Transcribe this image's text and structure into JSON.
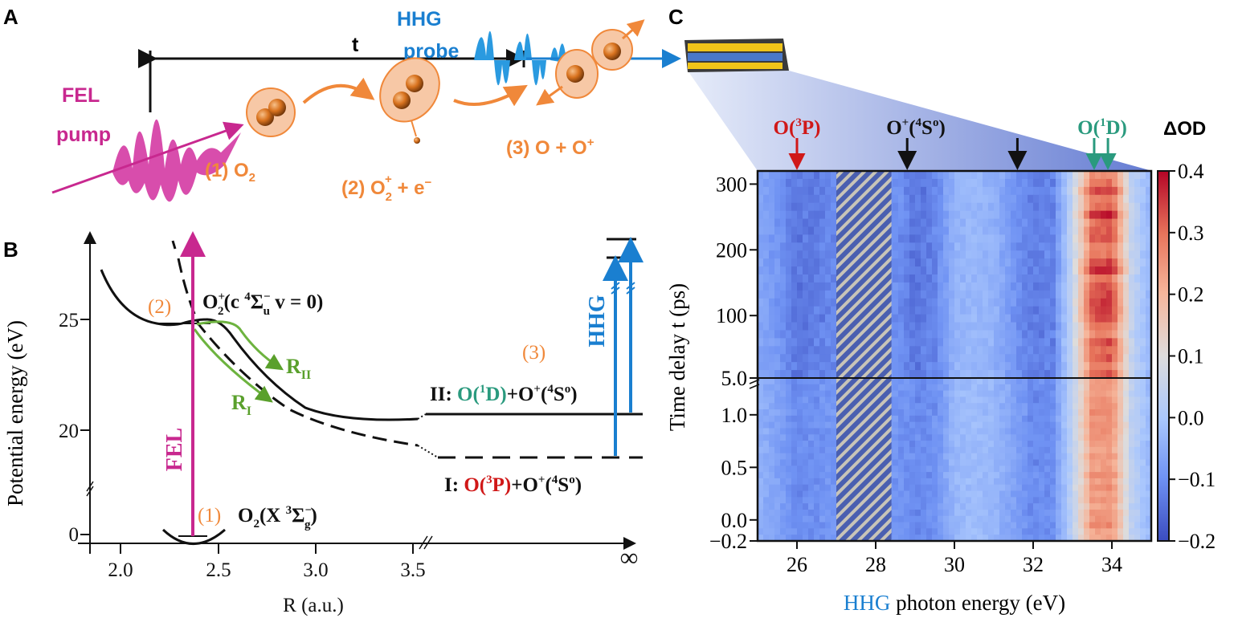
{
  "panels": {
    "a": {
      "letter": "A",
      "fel_label_1": "FEL",
      "fel_label_2": "pump",
      "hhg_label_1": "HHG",
      "hhg_label_2": "probe",
      "delay_label": "t",
      "step1": "(1) O",
      "step1_sub": "2",
      "step2": "(2) O",
      "step2_sub": "2",
      "step2_sup": "+",
      "step2_tail": " + e",
      "step2_tail_sup": "−",
      "step3": "(3) O + O",
      "step3_sup": "+",
      "colors": {
        "fel": "#c8288f",
        "hhg": "#1a7fd0",
        "molecule": "#f0883a"
      }
    },
    "b": {
      "letter": "B",
      "ylabel": "Potential energy (eV)",
      "xlabel": "R (a.u.)",
      "yticks": [
        "0",
        "20",
        "25"
      ],
      "xticks": [
        "2.0",
        "2.5",
        "3.0",
        "3.5",
        "∞"
      ],
      "fel": "FEL",
      "hhg": "HHG",
      "step1": "(1)",
      "step2": "(2)",
      "step3": "(3)",
      "ground_state": {
        "main": "O",
        "sub1": "2",
        "rest": "(X ",
        "sup": "3",
        "sigma": "Σ",
        "sub2": "g",
        "sup2": "−",
        "close": ")"
      },
      "excited_state": {
        "main": "O",
        "sup": "+",
        "sub": "2",
        "rest": "(c ",
        "sup2": "4",
        "sigma": "Σ",
        "sub2": "u",
        "sup3": "−",
        "tail": " v = 0)"
      },
      "r1": "R",
      "r1_sub": "I",
      "r2": "R",
      "r2_sub": "II",
      "channel_2": {
        "prefix": "II: ",
        "species": "O(",
        "sup": "1",
        "species_end": "D)",
        "rest": "+O",
        "rest_sup": "+",
        "rest2": "(",
        "rest2_sup": "4",
        "rest3": "S",
        "rest3_sup": "o",
        "rest4": ")"
      },
      "channel_1": {
        "prefix": "I: ",
        "species": "O(",
        "sup": "3",
        "species_end": "P)",
        "rest": "+O",
        "rest_sup": "+",
        "rest2": "(",
        "rest2_sup": "4",
        "rest3": "S",
        "rest3_sup": "o",
        "rest4": ")"
      },
      "colors": {
        "channel_2": "#2a9a7e",
        "channel_1": "#d01818",
        "path": "#6db33f",
        "step": "#f0883a"
      }
    },
    "c": {
      "letter": "C",
      "annotations": [
        {
          "label": "O(",
          "sup": "3",
          "end": "P)",
          "color": "#d01818",
          "energies_eV": [
            26.0
          ]
        },
        {
          "label": "O",
          "sup": "+",
          "mid": "(",
          "sup2": "4",
          "end": "S",
          "sup3": "o",
          "close": ")",
          "color": "#111111",
          "energies_eV": [
            28.8,
            31.6
          ]
        },
        {
          "label": "O(",
          "sup": "1",
          "end": "D)",
          "color": "#2a9a7e",
          "energies_eV": [
            33.55,
            33.9
          ]
        }
      ]
    }
  },
  "chart_data": {
    "type": "heatmap",
    "xlabel_colored": "HHG",
    "xlabel_rest": " photon energy (eV)",
    "ylabel": "Time delay t (ps)",
    "colorbar_label": "ΔOD",
    "xlim": [
      25,
      35
    ],
    "xticks": [
      "26",
      "28",
      "30",
      "32",
      "34"
    ],
    "y_broken_axis": true,
    "y_segments": [
      {
        "range": [
          5.0,
          320
        ],
        "ticks": [
          "5.0",
          "100",
          "200",
          "300"
        ]
      },
      {
        "range": [
          -0.2,
          1.35
        ],
        "ticks": [
          "−0.2",
          "0.0",
          "0.5",
          "1.0"
        ]
      }
    ],
    "colorbar": {
      "range": [
        -0.2,
        0.4
      ],
      "ticks": [
        "−0.2",
        "−0.1",
        "0.0",
        "0.1",
        "0.2",
        "0.3",
        "0.4"
      ],
      "colormap": [
        "#3b4cc0",
        "#6f92f3",
        "#aac7fd",
        "#dddcdc",
        "#f6b69b",
        "#e7745b",
        "#b40426"
      ]
    },
    "masked_region_eV": [
      27.0,
      28.4
    ],
    "energy_profile_eV": [
      25,
      25.5,
      26,
      26.5,
      27,
      27.5,
      28,
      28.5,
      29,
      29.5,
      30,
      30.5,
      31,
      31.5,
      32,
      32.5,
      33,
      33.5,
      34,
      34.5,
      35
    ],
    "delta_od_long_delay": [
      -0.06,
      -0.09,
      -0.14,
      -0.13,
      -0.11,
      null,
      null,
      -0.1,
      -0.14,
      -0.12,
      -0.04,
      -0.03,
      -0.04,
      -0.09,
      -0.13,
      -0.12,
      0.05,
      0.3,
      0.32,
      0.05,
      -0.04
    ],
    "delta_od_short_delay": [
      -0.04,
      -0.07,
      -0.11,
      -0.1,
      -0.09,
      null,
      null,
      -0.09,
      -0.11,
      -0.1,
      -0.03,
      -0.02,
      -0.03,
      -0.07,
      -0.11,
      -0.1,
      0.04,
      0.24,
      0.25,
      0.04,
      -0.03
    ]
  }
}
